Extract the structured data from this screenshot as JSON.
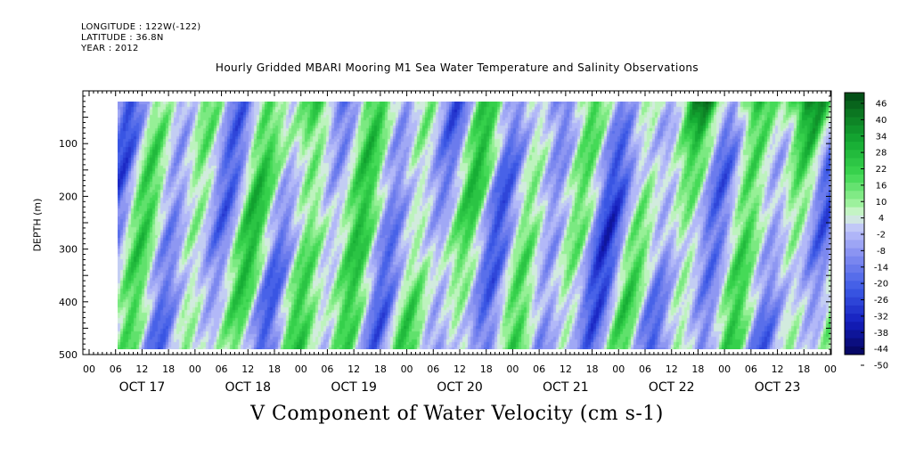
{
  "header": {
    "longitude": "LONGITUDE : 122W(-122)",
    "latitude": "LATITUDE : 36.8N",
    "year": "YEAR : 2012"
  },
  "chart_data": {
    "type": "heatmap",
    "title": "Hourly Gridded MBARI Mooring M1 Sea Water Temperature and Salinity Observations",
    "xlabel": "V Component of Water Velocity (cm s-1)",
    "ylabel": "DEPTH (m)",
    "y_range": [
      500,
      0
    ],
    "y_ticks": [
      100,
      200,
      300,
      400,
      500
    ],
    "y_tick_labels": [
      "100",
      "200",
      "300",
      "400",
      "500"
    ],
    "x_hour_labels": [
      "00",
      "06",
      "12",
      "18",
      "00",
      "06",
      "12",
      "18",
      "00",
      "06",
      "12",
      "18",
      "00",
      "06",
      "12",
      "18",
      "00",
      "06",
      "12",
      "18",
      "00",
      "06",
      "12",
      "18",
      "00",
      "06",
      "12",
      "18",
      "00"
    ],
    "x_day_labels": [
      "OCT 17",
      "OCT 18",
      "OCT 19",
      "OCT 20",
      "OCT 21",
      "OCT 22",
      "OCT 23"
    ],
    "data_depth_range": [
      20,
      490
    ],
    "colorbar": {
      "labels": [
        "46",
        "40",
        "34",
        "28",
        "22",
        "16",
        "10",
        "4",
        "-2",
        "-8",
        "-14",
        "-20",
        "-26",
        "-32",
        "-38",
        "-44",
        "-50"
      ],
      "min": -50,
      "max": 46,
      "step": 3
    },
    "grid": false,
    "colormap": "blue-white-green"
  }
}
